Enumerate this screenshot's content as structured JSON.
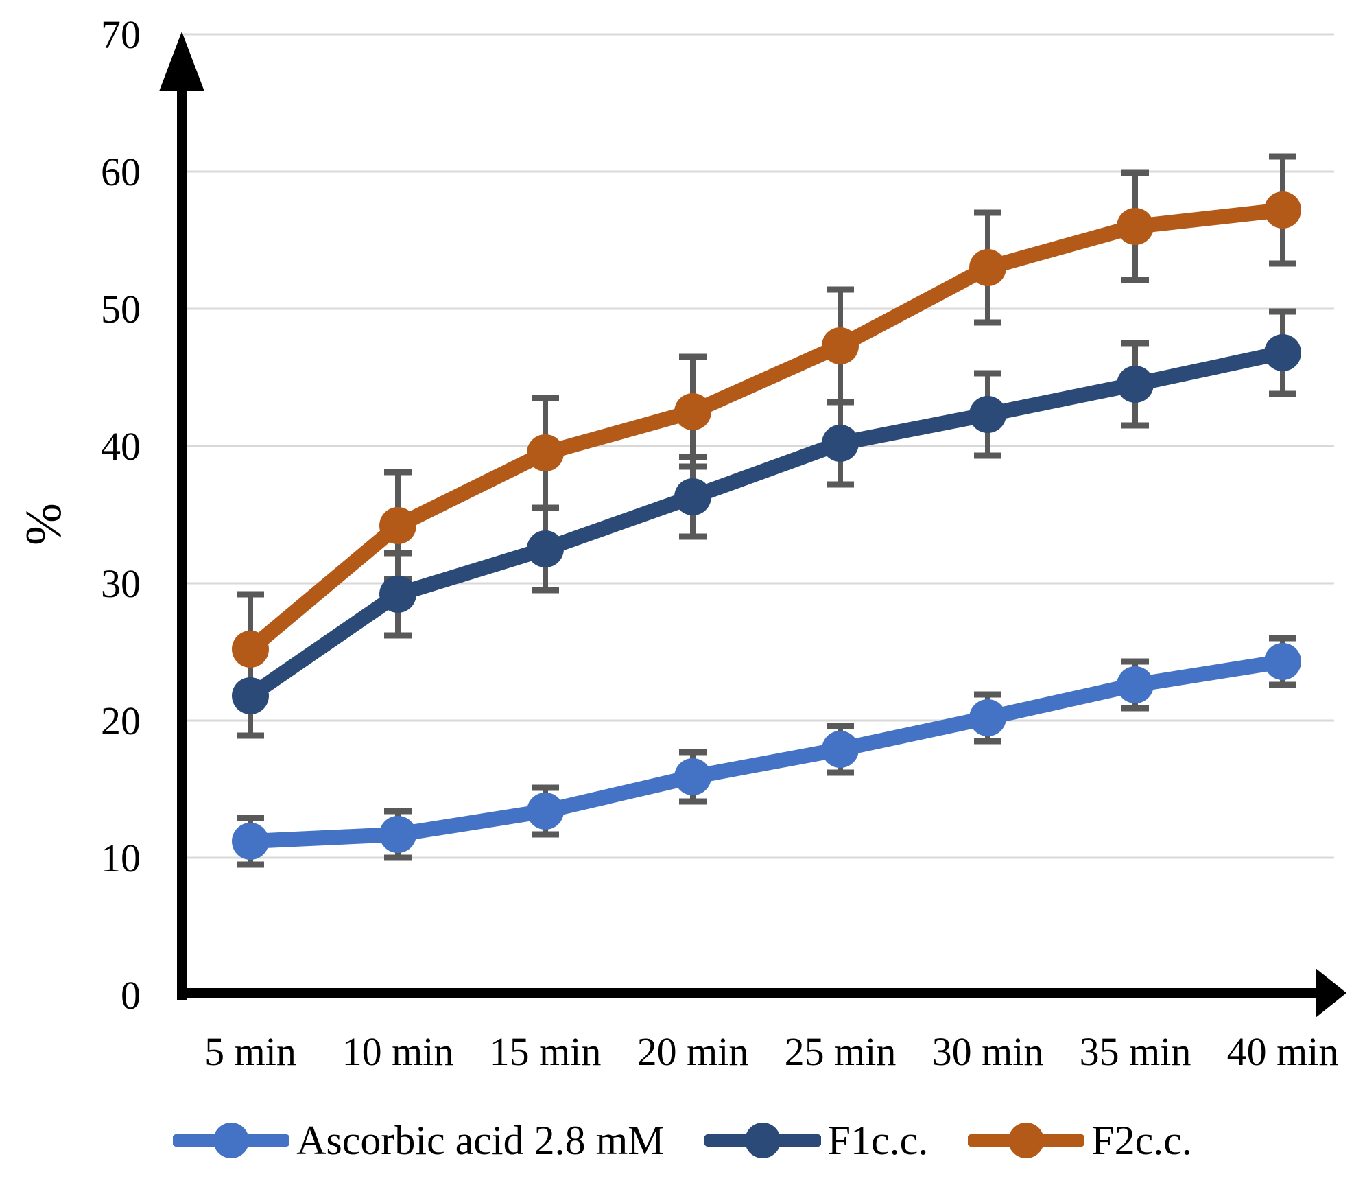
{
  "chart_data": {
    "type": "line",
    "title": "",
    "xlabel": "",
    "ylabel": "%",
    "categories": [
      "5 min",
      "10 min",
      "15 min",
      "20 min",
      "25 min",
      "30 min",
      "35 min",
      "40 min"
    ],
    "y_ticks": [
      0,
      10,
      20,
      30,
      40,
      50,
      60,
      70
    ],
    "ylim": [
      0,
      70
    ],
    "grid": true,
    "legend_position": "bottom",
    "error_bars": true,
    "series": [
      {
        "name": "Ascorbic acid 2.8 mM",
        "color": "#4472C4",
        "values": [
          11.2,
          11.7,
          13.4,
          15.9,
          17.9,
          20.2,
          22.6,
          24.3
        ],
        "errors": [
          1.7,
          1.7,
          1.7,
          1.8,
          1.7,
          1.7,
          1.7,
          1.7
        ]
      },
      {
        "name": "F1c.c.",
        "color": "#2B4A78",
        "values": [
          21.8,
          29.2,
          32.5,
          36.3,
          40.2,
          42.3,
          44.5,
          46.8
        ],
        "errors": [
          2.9,
          3.0,
          3.0,
          2.9,
          3.0,
          3.0,
          3.0,
          3.0
        ]
      },
      {
        "name": "F2c.c.",
        "color": "#B45A18",
        "values": [
          25.2,
          34.2,
          39.5,
          42.5,
          47.3,
          53.0,
          56.0,
          57.2
        ],
        "errors": [
          4.0,
          3.9,
          4.0,
          4.0,
          4.1,
          4.0,
          3.9,
          3.9
        ]
      }
    ],
    "error_bar_color": "#595959",
    "gridline_color": "#D9D9D9",
    "axis_color": "#000000",
    "background_color": "#FFFFFF"
  }
}
